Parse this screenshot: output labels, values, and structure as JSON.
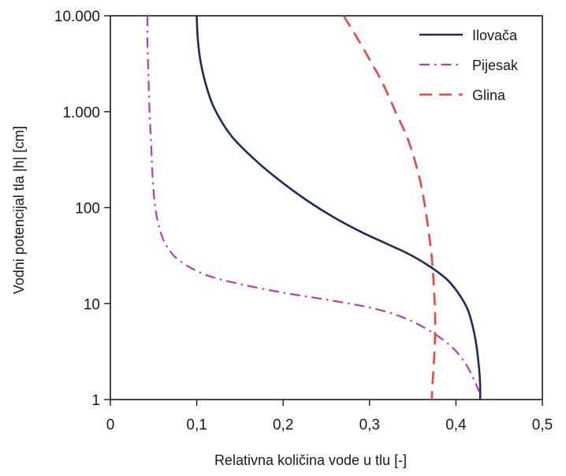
{
  "chart_data": {
    "type": "line",
    "xlabel": "Relativna količina vode u tlu [-]",
    "ylabel": "Vodni potencijal tla |h| [cm]",
    "xlim": [
      0,
      0.5
    ],
    "ylim": [
      1,
      10000
    ],
    "yscale": "log",
    "grid": false,
    "legend_position": "top-right",
    "x_ticks": [
      {
        "value": 0,
        "label": "0"
      },
      {
        "value": 0.1,
        "label": "0,1"
      },
      {
        "value": 0.2,
        "label": "0,2"
      },
      {
        "value": 0.3,
        "label": "0,3"
      },
      {
        "value": 0.4,
        "label": "0,4"
      },
      {
        "value": 0.5,
        "label": "0,5"
      }
    ],
    "y_ticks": [
      {
        "value": 1,
        "label": "1"
      },
      {
        "value": 10,
        "label": "10"
      },
      {
        "value": 100,
        "label": "100"
      },
      {
        "value": 1000,
        "label": "1.000"
      },
      {
        "value": 10000,
        "label": "10.000"
      }
    ],
    "series": [
      {
        "name": "Ilovača",
        "color": "#1f2a5a",
        "style": "solid",
        "points": [
          [
            0.1,
            10000
          ],
          [
            0.101,
            6000
          ],
          [
            0.104,
            3500
          ],
          [
            0.11,
            2000
          ],
          [
            0.12,
            1100
          ],
          [
            0.14,
            560
          ],
          [
            0.17,
            300
          ],
          [
            0.2,
            180
          ],
          [
            0.23,
            115
          ],
          [
            0.26,
            78
          ],
          [
            0.29,
            56
          ],
          [
            0.32,
            42
          ],
          [
            0.345,
            33
          ],
          [
            0.365,
            26
          ],
          [
            0.38,
            21
          ],
          [
            0.392,
            17
          ],
          [
            0.405,
            12
          ],
          [
            0.414,
            8.5
          ],
          [
            0.42,
            5.5
          ],
          [
            0.424,
            3.5
          ],
          [
            0.427,
            2.0
          ],
          [
            0.428,
            1.4
          ],
          [
            0.428,
            1.0
          ]
        ]
      },
      {
        "name": "Pijesak",
        "color": "#b23fb3",
        "style": "dashdot",
        "points": [
          [
            0.043,
            10000
          ],
          [
            0.043,
            5000
          ],
          [
            0.044,
            2500
          ],
          [
            0.045,
            1200
          ],
          [
            0.047,
            500
          ],
          [
            0.049,
            200
          ],
          [
            0.052,
            100
          ],
          [
            0.057,
            60
          ],
          [
            0.065,
            40
          ],
          [
            0.08,
            28
          ],
          [
            0.11,
            20
          ],
          [
            0.15,
            16
          ],
          [
            0.2,
            13
          ],
          [
            0.25,
            11
          ],
          [
            0.29,
            9.5
          ],
          [
            0.32,
            8.2
          ],
          [
            0.345,
            6.8
          ],
          [
            0.365,
            5.5
          ],
          [
            0.385,
            4.2
          ],
          [
            0.4,
            3.2
          ],
          [
            0.412,
            2.3
          ],
          [
            0.421,
            1.6
          ],
          [
            0.427,
            1.2
          ]
        ]
      },
      {
        "name": "Glina",
        "color": "#ee4444",
        "style": "dashed",
        "points": [
          [
            0.27,
            10000
          ],
          [
            0.285,
            6000
          ],
          [
            0.3,
            3500
          ],
          [
            0.315,
            2000
          ],
          [
            0.33,
            1000
          ],
          [
            0.345,
            500
          ],
          [
            0.358,
            200
          ],
          [
            0.366,
            80
          ],
          [
            0.372,
            30
          ],
          [
            0.375,
            12
          ],
          [
            0.376,
            6
          ],
          [
            0.375,
            3
          ],
          [
            0.373,
            1.5
          ],
          [
            0.372,
            1.0
          ]
        ]
      }
    ]
  }
}
